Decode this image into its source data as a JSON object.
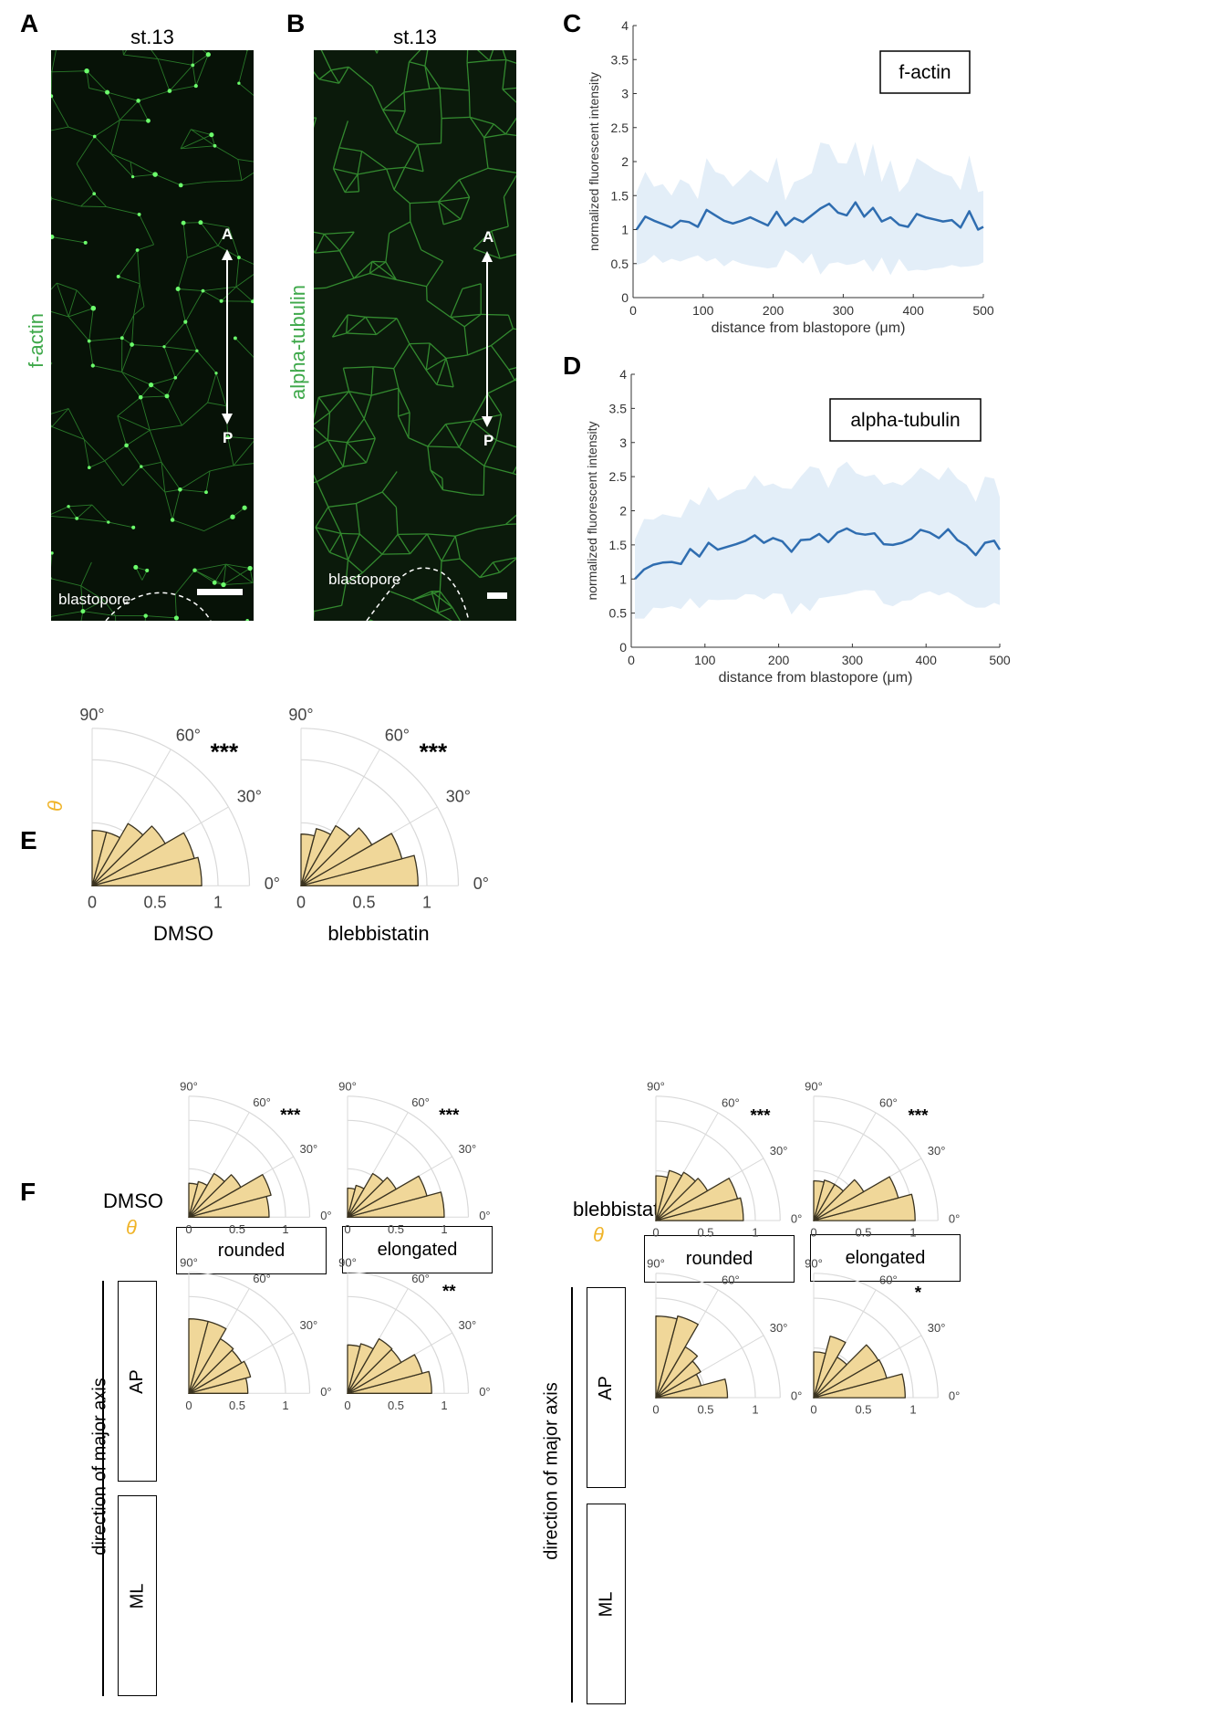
{
  "panels": {
    "A": {
      "letter": "A",
      "title": "st.13",
      "stain": "f-actin",
      "axis_top": "A",
      "axis_bottom": "P",
      "landmark": "blastopore"
    },
    "B": {
      "letter": "B",
      "title": "st.13",
      "stain": "alpha-tubulin",
      "axis_top": "A",
      "axis_bottom": "P",
      "landmark": "blastopore"
    },
    "C": {
      "letter": "C"
    },
    "D": {
      "letter": "D"
    },
    "E": {
      "letter": "E",
      "theta_symbol": "θ"
    },
    "F": {
      "letter": "F",
      "theta_symbol": "θ",
      "row_group_label": "direction of major axis",
      "groups": [
        {
          "name": "DMSO",
          "columns": [
            "rounded",
            "elongated"
          ],
          "rows": [
            "AP",
            "ML"
          ]
        },
        {
          "name": "blebbistatin",
          "columns": [
            "rounded",
            "elongated"
          ],
          "rows": [
            "AP",
            "ML"
          ]
        }
      ]
    }
  },
  "colors": {
    "line": "#2f6db0",
    "band": "#e3eef8",
    "polar_fill": "#f0d799",
    "polar_edge": "#3a3320",
    "grid": "#d9d9d9",
    "stain_label": "#3ea84a",
    "theta": "#f0b429"
  },
  "chart_data": [
    {
      "id": "C",
      "type": "line",
      "legend": "f-actin",
      "legend_placement": "top-right",
      "xlabel": "distance from blastopore (μm)",
      "ylabel": "normalized fluorescent intensity",
      "xlim": [
        0,
        500
      ],
      "ylim": [
        0,
        4
      ],
      "xticks": [
        0,
        100,
        200,
        300,
        400,
        500
      ],
      "yticks": [
        0,
        0.5,
        1,
        1.5,
        2,
        2.5,
        3,
        3.5,
        4
      ],
      "ytick_labels": [
        "0",
        "0.5",
        "1",
        "1.5",
        "2",
        "2.5",
        "3",
        "3.5",
        "4"
      ],
      "x": [
        5,
        17.5,
        30,
        42.5,
        55,
        67.5,
        80,
        92.5,
        105,
        117.5,
        130,
        142.5,
        155,
        167.5,
        180,
        192.5,
        205,
        217.5,
        230,
        242.5,
        255,
        267.5,
        280,
        292.5,
        305,
        317.5,
        330,
        342.5,
        355,
        367.5,
        380,
        392.5,
        405,
        417.5,
        430,
        442.5,
        455,
        467.5,
        480,
        492.5,
        500
      ],
      "mean": [
        1.0,
        1.19,
        1.13,
        1.08,
        1.03,
        1.13,
        1.11,
        1.04,
        1.29,
        1.21,
        1.13,
        1.09,
        1.13,
        1.18,
        1.12,
        1.06,
        1.26,
        1.06,
        1.17,
        1.11,
        1.21,
        1.31,
        1.38,
        1.25,
        1.21,
        1.4,
        1.19,
        1.32,
        1.12,
        1.18,
        1.07,
        1.04,
        1.23,
        1.18,
        1.15,
        1.12,
        1.14,
        1.03,
        1.27,
        1.0,
        1.04
      ],
      "upper": [
        1.55,
        1.85,
        1.63,
        1.67,
        1.5,
        1.74,
        1.67,
        1.45,
        2.05,
        1.85,
        1.8,
        1.63,
        1.75,
        1.88,
        1.78,
        1.69,
        2.06,
        1.43,
        1.7,
        1.75,
        1.83,
        2.28,
        2.25,
        1.98,
        1.97,
        2.29,
        1.78,
        2.26,
        1.7,
        2.02,
        1.55,
        1.7,
        2.05,
        1.97,
        1.88,
        1.82,
        1.78,
        1.58,
        2.09,
        1.55,
        1.57
      ],
      "lower": [
        0.48,
        0.52,
        0.63,
        0.51,
        0.57,
        0.53,
        0.58,
        0.62,
        0.53,
        0.58,
        0.46,
        0.55,
        0.5,
        0.47,
        0.45,
        0.43,
        0.45,
        0.7,
        0.62,
        0.5,
        0.65,
        0.34,
        0.5,
        0.52,
        0.48,
        0.5,
        0.56,
        0.38,
        0.59,
        0.33,
        0.57,
        0.39,
        0.41,
        0.4,
        0.43,
        0.44,
        0.48,
        0.45,
        0.46,
        0.48,
        0.52
      ]
    },
    {
      "id": "D",
      "type": "line",
      "legend": "alpha-tubulin",
      "legend_placement": "top-right",
      "xlabel": "distance from blastopore (μm)",
      "ylabel": "normalized fluorescent intensity",
      "xlim": [
        0,
        500
      ],
      "ylim": [
        0,
        4
      ],
      "xticks": [
        0,
        100,
        200,
        300,
        400,
        500
      ],
      "yticks": [
        0,
        0.5,
        1,
        1.5,
        2,
        2.5,
        3,
        3.5,
        4
      ],
      "ytick_labels": [
        "0",
        "0.5",
        "1",
        "1.5",
        "2",
        "2.5",
        "3",
        "3.5",
        "4"
      ],
      "x": [
        5,
        17.5,
        30,
        42.5,
        55,
        67.5,
        80,
        92.5,
        105,
        117.5,
        130,
        142.5,
        155,
        167.5,
        180,
        192.5,
        205,
        217.5,
        230,
        242.5,
        255,
        267.5,
        280,
        292.5,
        305,
        317.5,
        330,
        342.5,
        355,
        367.5,
        380,
        392.5,
        405,
        417.5,
        430,
        442.5,
        455,
        467.5,
        480,
        492.5,
        500
      ],
      "mean": [
        1.0,
        1.14,
        1.21,
        1.24,
        1.25,
        1.22,
        1.44,
        1.33,
        1.53,
        1.43,
        1.47,
        1.51,
        1.56,
        1.64,
        1.53,
        1.6,
        1.55,
        1.4,
        1.57,
        1.58,
        1.66,
        1.54,
        1.68,
        1.74,
        1.67,
        1.65,
        1.67,
        1.51,
        1.5,
        1.53,
        1.59,
        1.72,
        1.68,
        1.6,
        1.73,
        1.57,
        1.49,
        1.35,
        1.53,
        1.56,
        1.43
      ],
      "upper": [
        1.58,
        1.88,
        1.87,
        1.95,
        1.92,
        1.9,
        2.17,
        2.08,
        2.35,
        2.15,
        2.22,
        2.3,
        2.32,
        2.52,
        2.36,
        2.4,
        2.33,
        2.32,
        2.5,
        2.65,
        2.62,
        2.33,
        2.62,
        2.72,
        2.55,
        2.5,
        2.53,
        2.38,
        2.42,
        2.37,
        2.48,
        2.63,
        2.55,
        2.45,
        2.64,
        2.47,
        2.38,
        2.13,
        2.5,
        2.47,
        2.2
      ],
      "lower": [
        0.42,
        0.42,
        0.58,
        0.57,
        0.6,
        0.56,
        0.72,
        0.57,
        0.7,
        0.69,
        0.7,
        0.7,
        0.78,
        0.77,
        0.7,
        0.79,
        0.78,
        0.48,
        0.65,
        0.53,
        0.72,
        0.74,
        0.76,
        0.78,
        0.82,
        0.84,
        0.83,
        0.64,
        0.6,
        0.68,
        0.69,
        0.78,
        0.82,
        0.76,
        0.81,
        0.74,
        0.64,
        0.58,
        0.58,
        0.65,
        0.62
      ]
    },
    {
      "id": "E-DMSO",
      "type": "polar-histogram",
      "label": "DMSO",
      "significance": "***",
      "bin_edges_deg": [
        0,
        15,
        30,
        45,
        60,
        75,
        90
      ],
      "values": [
        0.87,
        0.84,
        0.67,
        0.57,
        0.44,
        0.44
      ],
      "rlim": [
        0,
        1.25
      ],
      "rticks": [
        0,
        0.5,
        1
      ],
      "rtick_labels": [
        "0",
        "0.5",
        "1"
      ],
      "angle_ticks": [
        "0°",
        "30°",
        "60°",
        "90°"
      ]
    },
    {
      "id": "E-blebbistatin",
      "type": "polar-histogram",
      "label": "blebbistatin",
      "significance": "***",
      "bin_edges_deg": [
        0,
        15,
        30,
        45,
        60,
        75,
        90
      ],
      "values": [
        0.93,
        0.83,
        0.65,
        0.55,
        0.47,
        0.41
      ],
      "rlim": [
        0,
        1.25
      ],
      "rticks": [
        0,
        0.5,
        1
      ],
      "rtick_labels": [
        "0",
        "0.5",
        "1"
      ],
      "angle_ticks": [
        "0°",
        "30°",
        "60°",
        "90°"
      ]
    },
    {
      "id": "F-DMSO-AP-rounded",
      "type": "polar-histogram",
      "group": "DMSO",
      "row": "AP",
      "column": "rounded",
      "significance": "***",
      "bin_edges_deg": [
        0,
        15,
        30,
        45,
        60,
        75,
        90
      ],
      "values": [
        0.83,
        0.88,
        0.62,
        0.52,
        0.38,
        0.35
      ],
      "rlim": [
        0,
        1.25
      ],
      "rticks": [
        0,
        0.5,
        1
      ],
      "rtick_labels": [
        "0",
        "0.5",
        "1"
      ],
      "angle_ticks": [
        "0°",
        "30°",
        "60°",
        "90°"
      ]
    },
    {
      "id": "F-DMSO-AP-elongated",
      "type": "polar-histogram",
      "group": "DMSO",
      "row": "AP",
      "column": "elongated",
      "significance": "***",
      "bin_edges_deg": [
        0,
        15,
        30,
        45,
        60,
        75,
        90
      ],
      "values": [
        1.0,
        0.85,
        0.58,
        0.52,
        0.34,
        0.3
      ],
      "rlim": [
        0,
        1.25
      ],
      "rticks": [
        0,
        0.5,
        1
      ],
      "rtick_labels": [
        "0",
        "0.5",
        "1"
      ],
      "angle_ticks": [
        "0°",
        "30°",
        "60°",
        "90°"
      ]
    },
    {
      "id": "F-DMSO-ML-rounded",
      "type": "polar-histogram",
      "group": "DMSO",
      "row": "ML",
      "column": "rounded",
      "significance": "",
      "bin_edges_deg": [
        0,
        15,
        30,
        45,
        60,
        75,
        90
      ],
      "values": [
        0.61,
        0.66,
        0.63,
        0.65,
        0.77,
        0.77
      ],
      "rlim": [
        0,
        1.25
      ],
      "rticks": [
        0,
        0.5,
        1
      ],
      "rtick_labels": [
        "0",
        "0.5",
        "1"
      ],
      "angle_ticks": [
        "0°",
        "30°",
        "60°",
        "90°"
      ]
    },
    {
      "id": "F-DMSO-ML-elongated",
      "type": "polar-histogram",
      "group": "DMSO",
      "row": "ML",
      "column": "elongated",
      "significance": "**",
      "bin_edges_deg": [
        0,
        15,
        30,
        45,
        60,
        75,
        90
      ],
      "values": [
        0.87,
        0.8,
        0.64,
        0.65,
        0.53,
        0.5
      ],
      "rlim": [
        0,
        1.25
      ],
      "rticks": [
        0,
        0.5,
        1
      ],
      "rtick_labels": [
        "0",
        "0.5",
        "1"
      ],
      "angle_ticks": [
        "0°",
        "30°",
        "60°",
        "90°"
      ]
    },
    {
      "id": "F-blebbistatin-AP-rounded",
      "type": "polar-histogram",
      "group": "blebbistatin",
      "row": "AP",
      "column": "rounded",
      "significance": "***",
      "bin_edges_deg": [
        0,
        15,
        30,
        45,
        60,
        75,
        90
      ],
      "values": [
        0.88,
        0.85,
        0.6,
        0.56,
        0.52,
        0.45
      ],
      "rlim": [
        0,
        1.25
      ],
      "rticks": [
        0,
        0.5,
        1
      ],
      "rtick_labels": [
        "0",
        "0.5",
        "1"
      ],
      "angle_ticks": [
        "0°",
        "30°",
        "60°",
        "90°"
      ]
    },
    {
      "id": "F-blebbistatin-AP-elongated",
      "type": "polar-histogram",
      "group": "blebbistatin",
      "row": "AP",
      "column": "elongated",
      "significance": "***",
      "bin_edges_deg": [
        0,
        15,
        30,
        45,
        60,
        75,
        90
      ],
      "values": [
        1.02,
        0.88,
        0.58,
        0.42,
        0.42,
        0.4
      ],
      "rlim": [
        0,
        1.25
      ],
      "rticks": [
        0,
        0.5,
        1
      ],
      "rtick_labels": [
        "0",
        "0.5",
        "1"
      ],
      "angle_ticks": [
        "0°",
        "30°",
        "60°",
        "90°"
      ]
    },
    {
      "id": "F-blebbistatin-ML-rounded",
      "type": "polar-histogram",
      "group": "blebbistatin",
      "row": "ML",
      "column": "rounded",
      "significance": "",
      "bin_edges_deg": [
        0,
        15,
        30,
        45,
        60,
        75,
        90
      ],
      "values": [
        0.72,
        0.47,
        0.52,
        0.59,
        0.85,
        0.82
      ],
      "rlim": [
        0,
        1.25
      ],
      "rticks": [
        0,
        0.5,
        1
      ],
      "rtick_labels": [
        "0",
        "0.5",
        "1"
      ],
      "angle_ticks": [
        "0°",
        "30°",
        "60°",
        "90°"
      ]
    },
    {
      "id": "F-blebbistatin-ML-elongated",
      "type": "polar-histogram",
      "group": "blebbistatin",
      "row": "ML",
      "column": "elongated",
      "significance": "*",
      "bin_edges_deg": [
        0,
        15,
        30,
        45,
        60,
        75,
        90
      ],
      "values": [
        0.92,
        0.76,
        0.75,
        0.47,
        0.64,
        0.46
      ],
      "rlim": [
        0,
        1.25
      ],
      "rticks": [
        0,
        0.5,
        1
      ],
      "rtick_labels": [
        "0",
        "0.5",
        "1"
      ],
      "angle_ticks": [
        "0°",
        "30°",
        "60°",
        "90°"
      ]
    }
  ]
}
